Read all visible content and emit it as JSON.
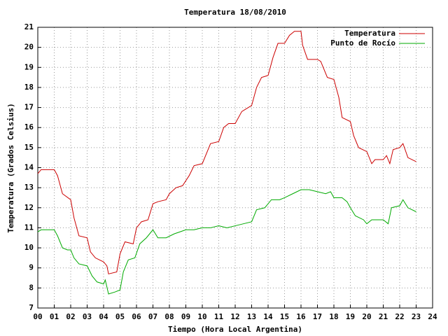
{
  "chart_data": {
    "type": "line",
    "title": "Temperatura 18/08/2010",
    "xlabel": "Tiempo (Hora Local Argentina)",
    "ylabel": "Temperatura (Grados Celsius)",
    "xlim": [
      0,
      24
    ],
    "ylim": [
      7,
      21
    ],
    "grid": true,
    "legend": "top-right",
    "xticks": [
      {
        "value": 0,
        "label": "00"
      },
      {
        "value": 1,
        "label": "01"
      },
      {
        "value": 2,
        "label": "02"
      },
      {
        "value": 3,
        "label": "03"
      },
      {
        "value": 4,
        "label": "04"
      },
      {
        "value": 5,
        "label": "05"
      },
      {
        "value": 6,
        "label": "06"
      },
      {
        "value": 7,
        "label": "07"
      },
      {
        "value": 8,
        "label": "08"
      },
      {
        "value": 9,
        "label": "09"
      },
      10,
      11,
      12,
      13,
      14,
      15,
      16,
      17,
      18,
      19,
      20,
      21,
      22,
      23,
      24
    ],
    "yticks": [
      7,
      8,
      9,
      10,
      11,
      12,
      13,
      14,
      15,
      16,
      17,
      18,
      19,
      20,
      21
    ],
    "series": [
      {
        "name": "Temperatura",
        "color": "#cc0000",
        "x": [
          0,
          0.2,
          1.0,
          1.2,
          1.5,
          2.0,
          2.2,
          2.5,
          3.0,
          3.2,
          3.5,
          4.0,
          4.2,
          4.3,
          4.8,
          5.0,
          5.3,
          5.8,
          6.0,
          6.3,
          6.7,
          7.0,
          7.3,
          7.8,
          8.0,
          8.4,
          8.8,
          9.2,
          9.5,
          10.0,
          10.5,
          11.0,
          11.3,
          11.6,
          12.0,
          12.4,
          13.0,
          13.3,
          13.6,
          14.0,
          14.3,
          14.6,
          15.0,
          15.3,
          15.6,
          16.0,
          16.1,
          16.4,
          17.0,
          17.2,
          17.6,
          18.0,
          18.3,
          18.5,
          19.0,
          19.2,
          19.5,
          20.0,
          20.3,
          20.5,
          21.0,
          21.2,
          21.4,
          21.6,
          22.0,
          22.2,
          22.5,
          23.0
        ],
        "values": [
          13.7,
          13.9,
          13.9,
          13.6,
          12.7,
          12.4,
          11.5,
          10.6,
          10.5,
          9.8,
          9.5,
          9.3,
          9.1,
          8.7,
          8.8,
          9.7,
          10.3,
          10.2,
          11.0,
          11.3,
          11.4,
          12.2,
          12.3,
          12.4,
          12.7,
          13.0,
          13.1,
          13.6,
          14.1,
          14.2,
          15.2,
          15.3,
          16.0,
          16.2,
          16.2,
          16.8,
          17.1,
          18.0,
          18.5,
          18.6,
          19.5,
          20.2,
          20.2,
          20.6,
          20.8,
          20.8,
          20.1,
          19.4,
          19.4,
          19.3,
          18.5,
          18.4,
          17.5,
          16.5,
          16.3,
          15.6,
          15.0,
          14.8,
          14.2,
          14.4,
          14.4,
          14.6,
          14.2,
          14.9,
          15.0,
          15.2,
          14.5,
          14.3
        ]
      },
      {
        "name": "Punto de Rocío",
        "color": "#00aa00",
        "x": [
          0,
          0.2,
          1.0,
          1.2,
          1.5,
          1.8,
          2.0,
          2.2,
          2.5,
          3.0,
          3.3,
          3.6,
          4.0,
          4.1,
          4.3,
          4.7,
          5.0,
          5.2,
          5.5,
          5.9,
          6.2,
          6.6,
          7.0,
          7.3,
          7.8,
          8.3,
          9.0,
          9.5,
          10.0,
          10.5,
          11.0,
          11.5,
          12.0,
          12.5,
          13.0,
          13.3,
          13.8,
          14.2,
          14.7,
          15.0,
          15.5,
          16.0,
          16.5,
          17.0,
          17.5,
          17.8,
          18.0,
          18.5,
          18.8,
          19.0,
          19.3,
          19.8,
          20.0,
          20.3,
          21.0,
          21.3,
          21.5,
          22.0,
          22.2,
          22.5,
          23.0
        ],
        "values": [
          10.8,
          10.9,
          10.9,
          10.6,
          10.0,
          9.9,
          9.9,
          9.5,
          9.2,
          9.1,
          8.6,
          8.3,
          8.2,
          8.4,
          7.7,
          7.8,
          7.9,
          8.8,
          9.4,
          9.5,
          10.2,
          10.5,
          10.9,
          10.5,
          10.5,
          10.7,
          10.9,
          10.9,
          11.0,
          11.0,
          11.1,
          11.0,
          11.1,
          11.2,
          11.3,
          11.9,
          12.0,
          12.4,
          12.4,
          12.5,
          12.7,
          12.9,
          12.9,
          12.8,
          12.7,
          12.8,
          12.5,
          12.5,
          12.3,
          12.0,
          11.6,
          11.4,
          11.2,
          11.4,
          11.4,
          11.2,
          12.0,
          12.1,
          12.4,
          12.0,
          11.8
        ]
      }
    ]
  }
}
